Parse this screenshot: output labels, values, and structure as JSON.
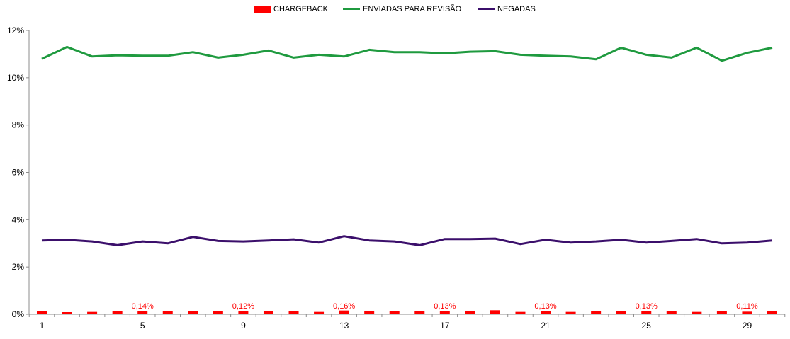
{
  "chart_data": {
    "type": "bar+line",
    "title": "",
    "xlabel": "",
    "ylabel": "",
    "x": [
      1,
      2,
      3,
      4,
      5,
      6,
      7,
      8,
      9,
      10,
      11,
      12,
      13,
      14,
      15,
      16,
      17,
      18,
      19,
      20,
      21,
      22,
      23,
      24,
      25,
      26,
      27,
      28,
      29,
      30
    ],
    "x_tick_labels": [
      "1",
      "5",
      "9",
      "13",
      "17",
      "21",
      "25",
      "29"
    ],
    "x_tick_values": [
      1,
      5,
      9,
      13,
      17,
      21,
      25,
      29
    ],
    "y_tick_labels": [
      "0%",
      "2%",
      "4%",
      "6%",
      "8%",
      "10%",
      "12%"
    ],
    "y_tick_values": [
      0,
      2,
      4,
      6,
      8,
      10,
      12
    ],
    "ylim": [
      0,
      12
    ],
    "grid": false,
    "legend_position": "top-center",
    "series": [
      {
        "name": "CHARGEBACK",
        "kind": "bar",
        "color": "#ff0000",
        "values": [
          0.12,
          0.09,
          0.1,
          0.12,
          0.14,
          0.12,
          0.14,
          0.12,
          0.12,
          0.12,
          0.14,
          0.1,
          0.16,
          0.15,
          0.14,
          0.13,
          0.13,
          0.15,
          0.17,
          0.1,
          0.13,
          0.1,
          0.12,
          0.12,
          0.13,
          0.14,
          0.1,
          0.12,
          0.11,
          0.15
        ]
      },
      {
        "name": "ENVIADAS PARA REVISÃO",
        "kind": "line",
        "color": "#1f9a3f",
        "values": [
          10.8,
          11.3,
          10.9,
          10.95,
          10.93,
          10.93,
          11.08,
          10.85,
          10.97,
          11.15,
          10.85,
          10.97,
          10.9,
          11.18,
          11.08,
          11.08,
          11.03,
          11.1,
          11.12,
          10.97,
          10.93,
          10.9,
          10.78,
          11.27,
          10.97,
          10.85,
          11.27,
          10.72,
          11.05,
          11.27
        ]
      },
      {
        "name": "NEGADAS",
        "kind": "line",
        "color": "#3b0f6b",
        "values": [
          3.12,
          3.15,
          3.08,
          2.92,
          3.08,
          3.0,
          3.27,
          3.1,
          3.08,
          3.12,
          3.17,
          3.03,
          3.3,
          3.12,
          3.08,
          2.92,
          3.18,
          3.18,
          3.2,
          2.97,
          3.15,
          3.03,
          3.08,
          3.15,
          3.03,
          3.1,
          3.18,
          3.0,
          3.03,
          3.12
        ]
      }
    ],
    "data_labels": [
      {
        "x": 5,
        "text": "0,14%"
      },
      {
        "x": 9,
        "text": "0,12%"
      },
      {
        "x": 13,
        "text": "0,16%"
      },
      {
        "x": 17,
        "text": "0,13%"
      },
      {
        "x": 21,
        "text": "0,13%"
      },
      {
        "x": 25,
        "text": "0,13%"
      },
      {
        "x": 29,
        "text": "0,11%"
      }
    ],
    "data_label_color": "#ff0000"
  },
  "legend": {
    "items": [
      {
        "label": "CHARGEBACK",
        "kind": "bar",
        "color": "#ff0000"
      },
      {
        "label": "ENVIADAS PARA REVISÃO",
        "kind": "line",
        "color": "#1f9a3f"
      },
      {
        "label": "NEGADAS",
        "kind": "line",
        "color": "#3b0f6b"
      }
    ]
  }
}
